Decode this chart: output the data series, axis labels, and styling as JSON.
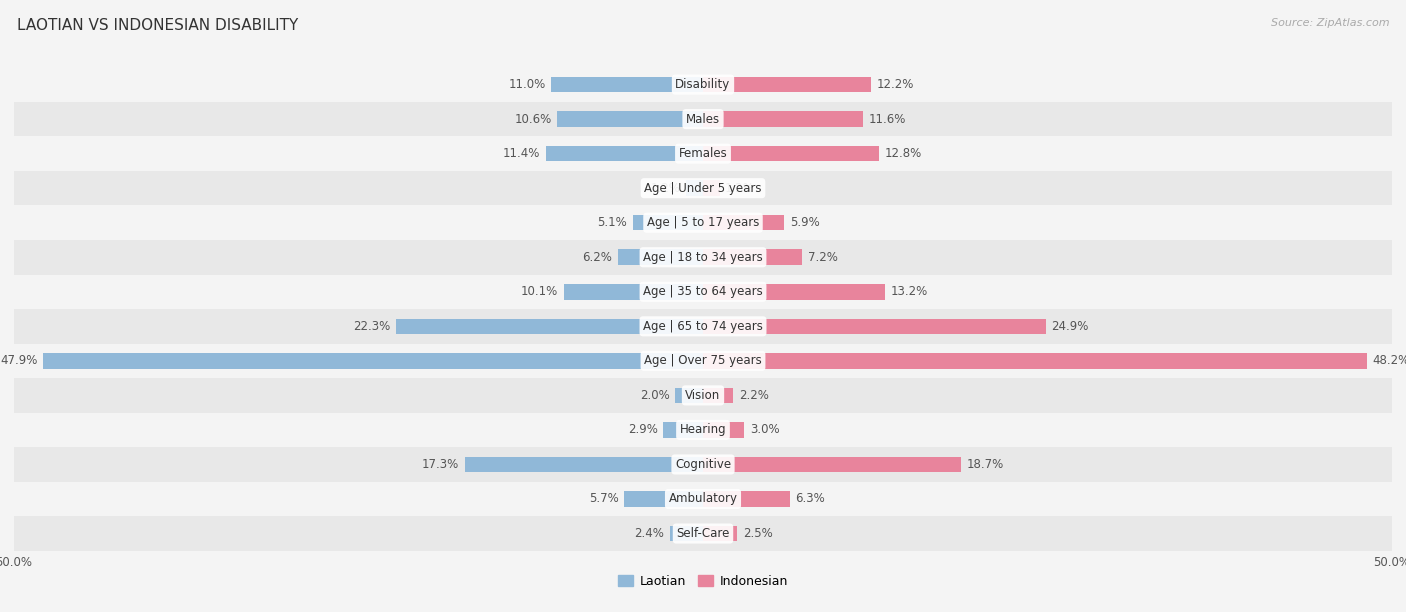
{
  "title": "LAOTIAN VS INDONESIAN DISABILITY",
  "source": "Source: ZipAtlas.com",
  "categories": [
    "Disability",
    "Males",
    "Females",
    "Age | Under 5 years",
    "Age | 5 to 17 years",
    "Age | 18 to 34 years",
    "Age | 35 to 64 years",
    "Age | 65 to 74 years",
    "Age | Over 75 years",
    "Vision",
    "Hearing",
    "Cognitive",
    "Ambulatory",
    "Self-Care"
  ],
  "laotian": [
    11.0,
    10.6,
    11.4,
    1.2,
    5.1,
    6.2,
    10.1,
    22.3,
    47.9,
    2.0,
    2.9,
    17.3,
    5.7,
    2.4
  ],
  "indonesian": [
    12.2,
    11.6,
    12.8,
    1.2,
    5.9,
    7.2,
    13.2,
    24.9,
    48.2,
    2.2,
    3.0,
    18.7,
    6.3,
    2.5
  ],
  "laotian_color": "#90b8d8",
  "indonesian_color": "#e8849c",
  "background_color": "#f4f4f4",
  "row_color_even": "#f4f4f4",
  "row_color_odd": "#e8e8e8",
  "max_value": 50.0,
  "bar_height": 0.45,
  "label_fontsize": 8.5,
  "cat_fontsize": 8.5,
  "title_fontsize": 11,
  "source_fontsize": 8,
  "legend_fontsize": 9,
  "legend_laotian": "Laotian",
  "legend_indonesian": "Indonesian"
}
